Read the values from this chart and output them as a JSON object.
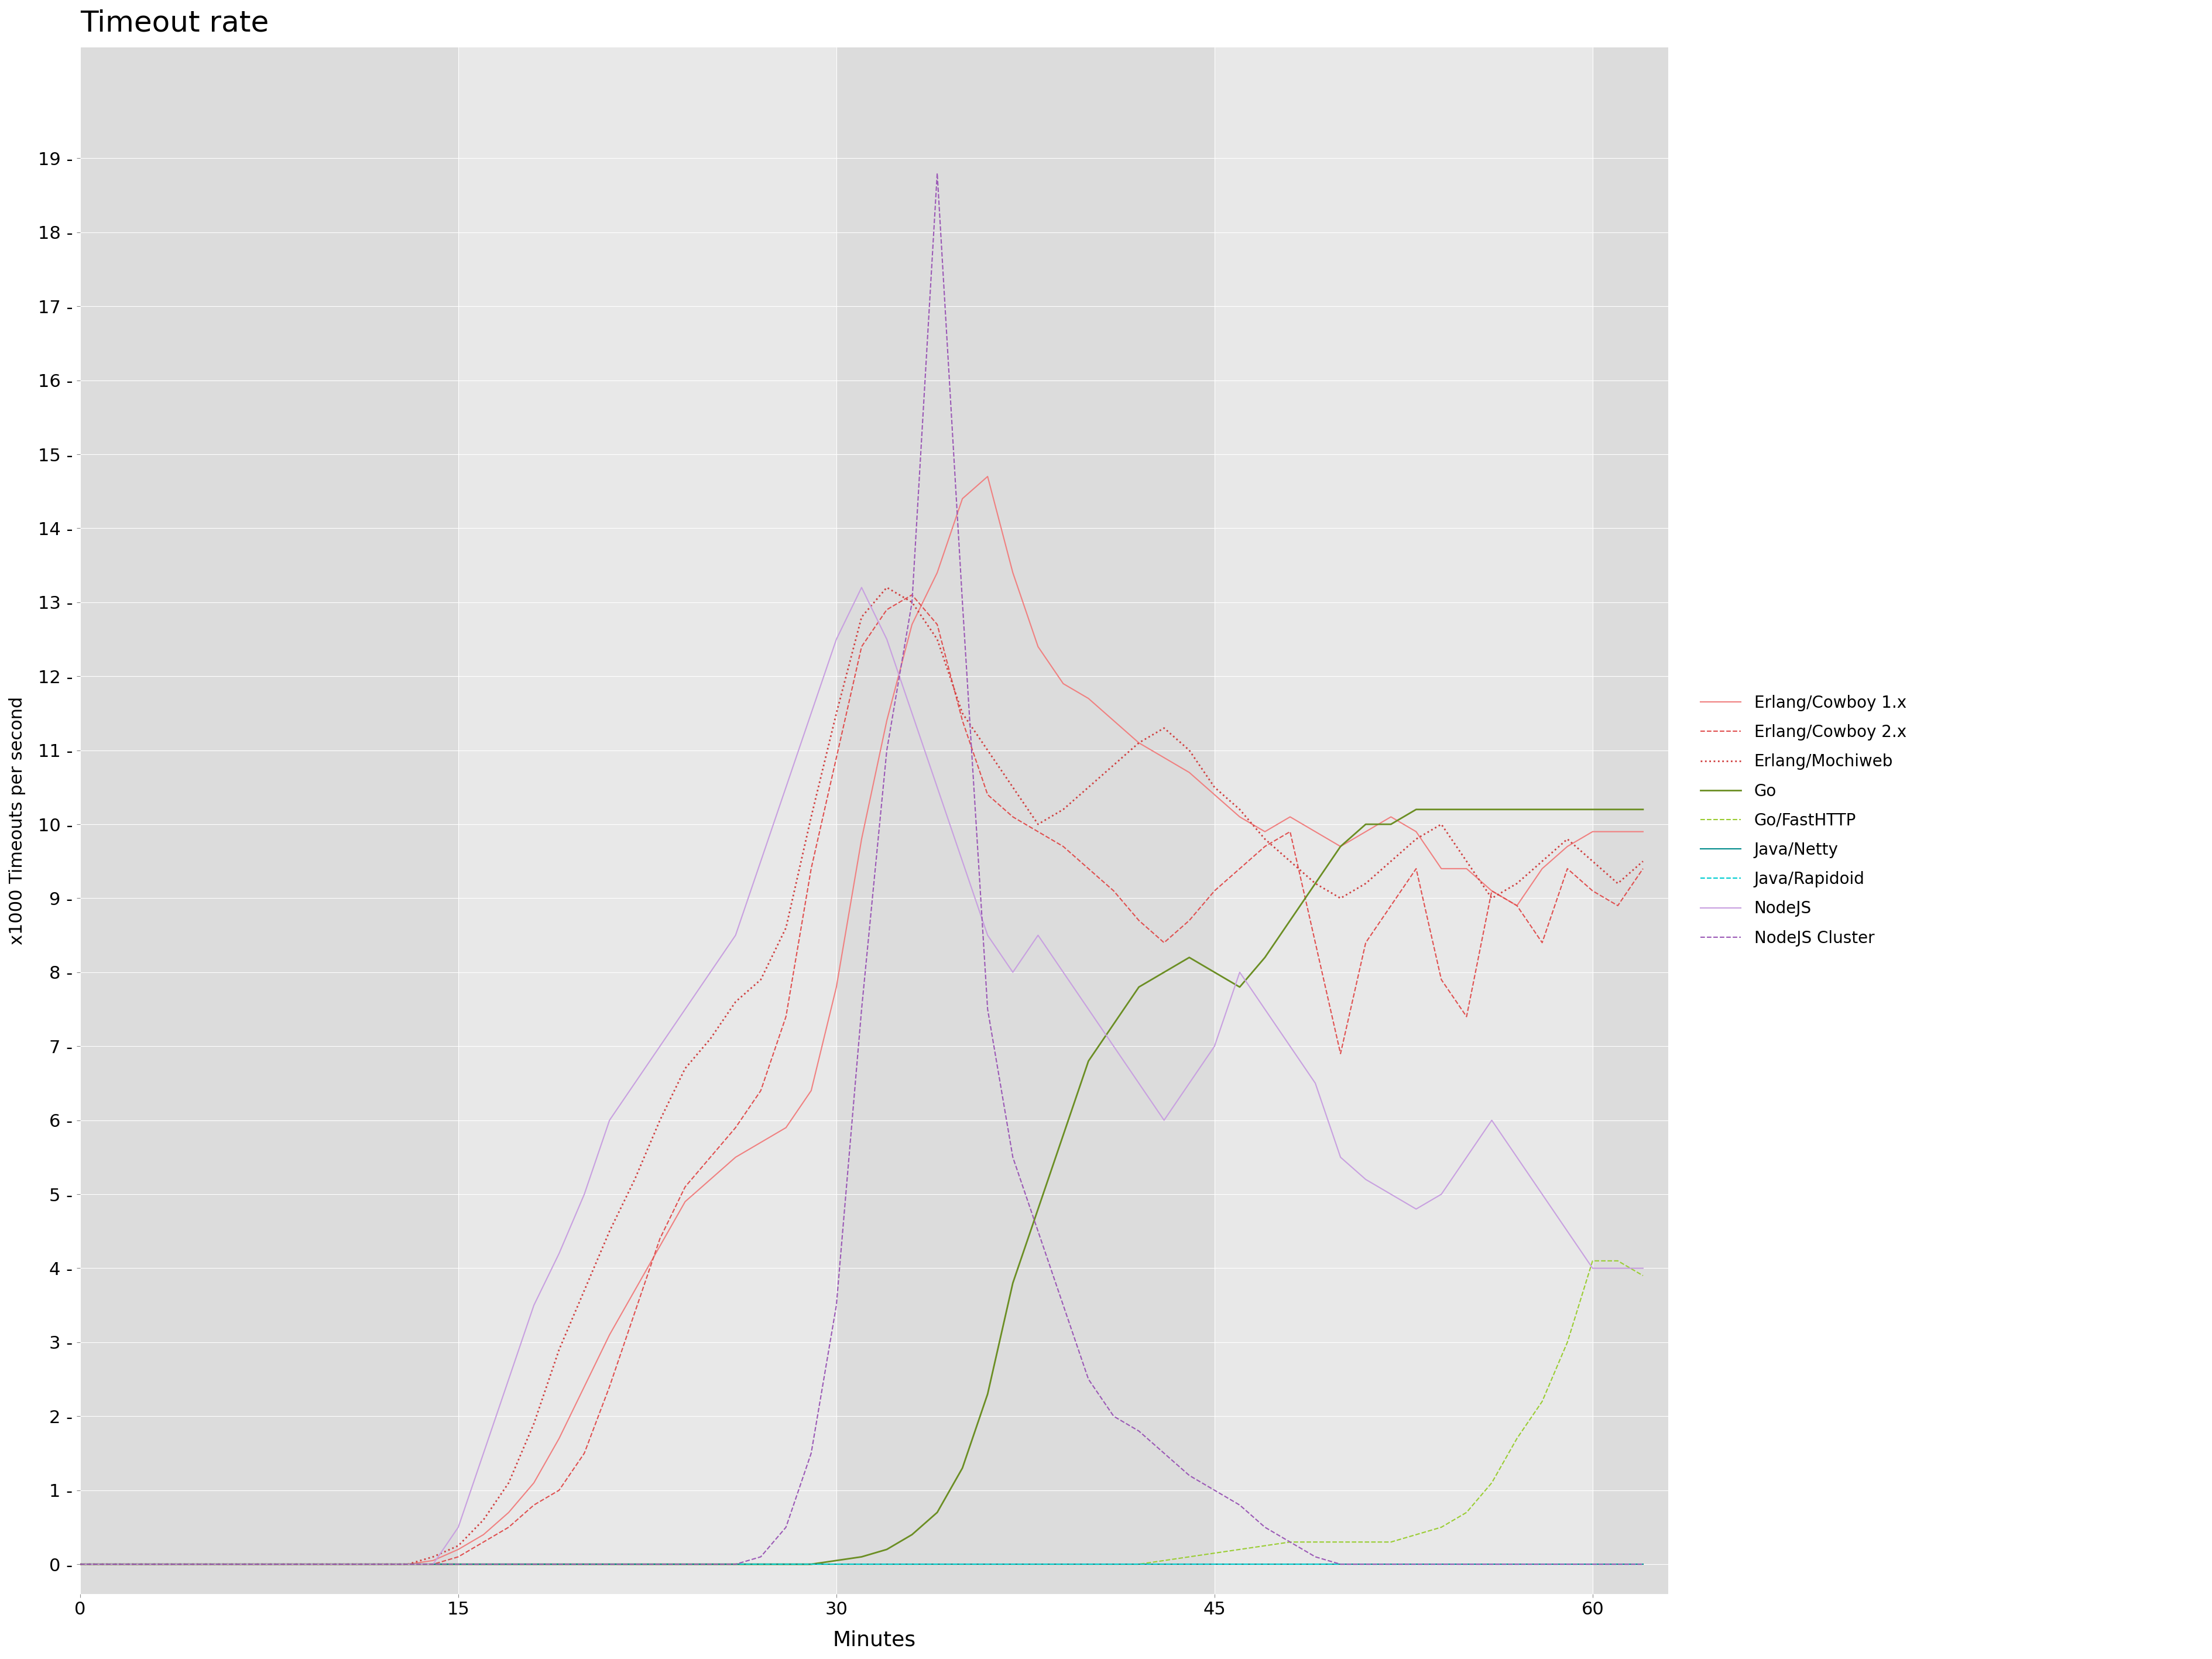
{
  "title": "Timeout rate",
  "xlabel": "Minutes",
  "ylabel": "x1000 Timeouts per second",
  "xlim": [
    0,
    63
  ],
  "ylim": [
    -0.4,
    20.5
  ],
  "yticks": [
    0,
    1,
    2,
    3,
    4,
    5,
    6,
    7,
    8,
    9,
    10,
    11,
    12,
    13,
    14,
    15,
    16,
    17,
    18,
    19
  ],
  "xticks": [
    0,
    15,
    30,
    45,
    60
  ],
  "bg_color": "#e8e8e8",
  "fig_bg": "#ffffff",
  "band_colors": [
    "#dcdcdc",
    "#e8e8e8"
  ],
  "grid_color": "#ffffff",
  "series": [
    {
      "name": "Erlang/Cowboy 1.x",
      "color": "#f08080",
      "linestyle": "-",
      "linewidth": 1.5,
      "x": [
        0,
        1,
        2,
        3,
        4,
        5,
        6,
        7,
        8,
        9,
        10,
        11,
        12,
        13,
        14,
        15,
        16,
        17,
        18,
        19,
        20,
        21,
        22,
        23,
        24,
        25,
        26,
        27,
        28,
        29,
        30,
        31,
        32,
        33,
        34,
        35,
        36,
        37,
        38,
        39,
        40,
        41,
        42,
        43,
        44,
        45,
        46,
        47,
        48,
        49,
        50,
        51,
        52,
        53,
        54,
        55,
        56,
        57,
        58,
        59,
        60,
        61,
        62
      ],
      "y": [
        0,
        0,
        0,
        0,
        0,
        0,
        0,
        0,
        0,
        0,
        0,
        0,
        0,
        0,
        0.05,
        0.2,
        0.4,
        0.7,
        1.1,
        1.7,
        2.4,
        3.1,
        3.7,
        4.3,
        4.9,
        5.2,
        5.5,
        5.7,
        5.9,
        6.4,
        7.8,
        9.8,
        11.4,
        12.7,
        13.4,
        14.4,
        14.7,
        13.4,
        12.4,
        11.9,
        11.7,
        11.4,
        11.1,
        10.9,
        10.7,
        10.4,
        10.1,
        9.9,
        10.1,
        9.9,
        9.7,
        9.9,
        10.1,
        9.9,
        9.4,
        9.4,
        9.1,
        8.9,
        9.4,
        9.7,
        9.9,
        9.9,
        9.9
      ]
    },
    {
      "name": "Erlang/Cowboy 2.x",
      "color": "#e05050",
      "linestyle": "--",
      "linewidth": 1.5,
      "x": [
        0,
        1,
        2,
        3,
        4,
        5,
        6,
        7,
        8,
        9,
        10,
        11,
        12,
        13,
        14,
        15,
        16,
        17,
        18,
        19,
        20,
        21,
        22,
        23,
        24,
        25,
        26,
        27,
        28,
        29,
        30,
        31,
        32,
        33,
        34,
        35,
        36,
        37,
        38,
        39,
        40,
        41,
        42,
        43,
        44,
        45,
        46,
        47,
        48,
        49,
        50,
        51,
        52,
        53,
        54,
        55,
        56,
        57,
        58,
        59,
        60,
        61,
        62
      ],
      "y": [
        0,
        0,
        0,
        0,
        0,
        0,
        0,
        0,
        0,
        0,
        0,
        0,
        0,
        0,
        0,
        0.1,
        0.3,
        0.5,
        0.8,
        1.0,
        1.5,
        2.4,
        3.4,
        4.4,
        5.1,
        5.5,
        5.9,
        6.4,
        7.4,
        9.4,
        10.9,
        12.4,
        12.9,
        13.1,
        12.7,
        11.4,
        10.4,
        10.1,
        9.9,
        9.7,
        9.4,
        9.1,
        8.7,
        8.4,
        8.7,
        9.1,
        9.4,
        9.7,
        9.9,
        8.4,
        6.9,
        8.4,
        8.9,
        9.4,
        7.9,
        7.4,
        9.1,
        8.9,
        8.4,
        9.4,
        9.1,
        8.9,
        9.4
      ]
    },
    {
      "name": "Erlang/Mochiweb",
      "color": "#d04040",
      "linestyle": ":",
      "linewidth": 2.0,
      "x": [
        0,
        1,
        2,
        3,
        4,
        5,
        6,
        7,
        8,
        9,
        10,
        11,
        12,
        13,
        14,
        15,
        16,
        17,
        18,
        19,
        20,
        21,
        22,
        23,
        24,
        25,
        26,
        27,
        28,
        29,
        30,
        31,
        32,
        33,
        34,
        35,
        36,
        37,
        38,
        39,
        40,
        41,
        42,
        43,
        44,
        45,
        46,
        47,
        48,
        49,
        50,
        51,
        52,
        53,
        54,
        55,
        56,
        57,
        58,
        59,
        60,
        61,
        62
      ],
      "y": [
        0,
        0,
        0,
        0,
        0,
        0,
        0,
        0,
        0,
        0,
        0,
        0,
        0,
        0,
        0.1,
        0.25,
        0.6,
        1.1,
        1.9,
        2.9,
        3.7,
        4.5,
        5.2,
        6.0,
        6.7,
        7.1,
        7.6,
        7.9,
        8.6,
        10.1,
        11.5,
        12.8,
        13.2,
        13.0,
        12.5,
        11.5,
        11.0,
        10.5,
        10.0,
        10.2,
        10.5,
        10.8,
        11.1,
        11.3,
        11.0,
        10.5,
        10.2,
        9.8,
        9.5,
        9.2,
        9.0,
        9.2,
        9.5,
        9.8,
        10.0,
        9.5,
        9.0,
        9.2,
        9.5,
        9.8,
        9.5,
        9.2,
        9.5
      ]
    },
    {
      "name": "Go",
      "color": "#6b8e23",
      "linestyle": "-",
      "linewidth": 2.0,
      "x": [
        0,
        1,
        2,
        3,
        4,
        5,
        6,
        7,
        8,
        9,
        10,
        11,
        12,
        13,
        14,
        15,
        16,
        17,
        18,
        19,
        20,
        21,
        22,
        23,
        24,
        25,
        26,
        27,
        28,
        29,
        30,
        31,
        32,
        33,
        34,
        35,
        36,
        37,
        38,
        39,
        40,
        41,
        42,
        43,
        44,
        45,
        46,
        47,
        48,
        49,
        50,
        51,
        52,
        53,
        54,
        55,
        56,
        57,
        58,
        59,
        60,
        61,
        62
      ],
      "y": [
        0,
        0,
        0,
        0,
        0,
        0,
        0,
        0,
        0,
        0,
        0,
        0,
        0,
        0,
        0,
        0,
        0,
        0,
        0,
        0,
        0,
        0,
        0,
        0,
        0,
        0,
        0,
        0,
        0,
        0,
        0.05,
        0.1,
        0.2,
        0.4,
        0.7,
        1.3,
        2.3,
        3.8,
        4.8,
        5.8,
        6.8,
        7.3,
        7.8,
        8.0,
        8.2,
        8.0,
        7.8,
        8.2,
        8.7,
        9.2,
        9.7,
        10.0,
        10.0,
        10.2,
        10.2,
        10.2,
        10.2,
        10.2,
        10.2,
        10.2,
        10.2,
        10.2,
        10.2
      ]
    },
    {
      "name": "Go/FastHTTP",
      "color": "#9acd32",
      "linestyle": "--",
      "linewidth": 1.5,
      "x": [
        0,
        1,
        2,
        3,
        4,
        5,
        6,
        7,
        8,
        9,
        10,
        11,
        12,
        13,
        14,
        15,
        16,
        17,
        18,
        19,
        20,
        21,
        22,
        23,
        24,
        25,
        26,
        27,
        28,
        29,
        30,
        31,
        32,
        33,
        34,
        35,
        36,
        37,
        38,
        39,
        40,
        41,
        42,
        43,
        44,
        45,
        46,
        47,
        48,
        49,
        50,
        51,
        52,
        53,
        54,
        55,
        56,
        57,
        58,
        59,
        60,
        61,
        62
      ],
      "y": [
        0,
        0,
        0,
        0,
        0,
        0,
        0,
        0,
        0,
        0,
        0,
        0,
        0,
        0,
        0,
        0,
        0,
        0,
        0,
        0,
        0,
        0,
        0,
        0,
        0,
        0,
        0,
        0,
        0,
        0,
        0,
        0,
        0,
        0,
        0,
        0,
        0,
        0,
        0,
        0,
        0,
        0,
        0,
        0.05,
        0.1,
        0.15,
        0.2,
        0.25,
        0.3,
        0.3,
        0.3,
        0.3,
        0.3,
        0.4,
        0.5,
        0.7,
        1.1,
        1.7,
        2.2,
        3.0,
        4.1,
        4.1,
        3.9
      ]
    },
    {
      "name": "Java/Netty",
      "color": "#008b8b",
      "linestyle": "-",
      "linewidth": 1.5,
      "x": [
        0,
        62
      ],
      "y": [
        0,
        0
      ]
    },
    {
      "name": "Java/Rapidoid",
      "color": "#00ced1",
      "linestyle": "--",
      "linewidth": 1.5,
      "x": [
        0,
        62
      ],
      "y": [
        0,
        0
      ]
    },
    {
      "name": "NodeJS",
      "color": "#c8a0e0",
      "linestyle": "-",
      "linewidth": 1.5,
      "x": [
        0,
        1,
        2,
        3,
        4,
        5,
        6,
        7,
        8,
        9,
        10,
        11,
        12,
        13,
        14,
        15,
        16,
        17,
        18,
        19,
        20,
        21,
        22,
        23,
        24,
        25,
        26,
        27,
        28,
        29,
        30,
        31,
        32,
        33,
        34,
        35,
        36,
        37,
        38,
        39,
        40,
        41,
        42,
        43,
        44,
        45,
        46,
        47,
        48,
        49,
        50,
        51,
        52,
        53,
        54,
        55,
        56,
        57,
        58,
        59,
        60,
        61,
        62
      ],
      "y": [
        0,
        0,
        0,
        0,
        0,
        0,
        0,
        0,
        0,
        0,
        0,
        0,
        0,
        0,
        0,
        0.5,
        1.5,
        2.5,
        3.5,
        4.2,
        5.0,
        6.0,
        6.5,
        7.0,
        7.5,
        8.0,
        8.5,
        9.5,
        10.5,
        11.5,
        12.5,
        13.2,
        12.5,
        11.5,
        10.5,
        9.5,
        8.5,
        8.0,
        8.5,
        8.0,
        7.5,
        7.0,
        6.5,
        6.0,
        6.5,
        7.0,
        8.0,
        7.5,
        7.0,
        6.5,
        5.5,
        5.2,
        5.0,
        4.8,
        5.0,
        5.5,
        6.0,
        5.5,
        5.0,
        4.5,
        4.0,
        4.0,
        4.0
      ]
    },
    {
      "name": "NodeJS Cluster",
      "color": "#9b59b6",
      "linestyle": "--",
      "linewidth": 1.5,
      "x": [
        0,
        1,
        2,
        3,
        4,
        5,
        6,
        7,
        8,
        9,
        10,
        11,
        12,
        13,
        14,
        15,
        16,
        17,
        18,
        19,
        20,
        21,
        22,
        23,
        24,
        25,
        26,
        27,
        28,
        29,
        30,
        31,
        32,
        33,
        34,
        35,
        36,
        37,
        38,
        39,
        40,
        41,
        42,
        43,
        44,
        45,
        46,
        47,
        48,
        49,
        50,
        51,
        52,
        53,
        54,
        55,
        56,
        57,
        58,
        59,
        60,
        61,
        62
      ],
      "y": [
        0,
        0,
        0,
        0,
        0,
        0,
        0,
        0,
        0,
        0,
        0,
        0,
        0,
        0,
        0,
        0,
        0,
        0,
        0,
        0,
        0,
        0,
        0,
        0,
        0,
        0,
        0,
        0.1,
        0.5,
        1.5,
        3.5,
        7.5,
        11.0,
        13.0,
        18.8,
        13.0,
        7.5,
        5.5,
        4.5,
        3.5,
        2.5,
        2.0,
        1.8,
        1.5,
        1.2,
        1.0,
        0.8,
        0.5,
        0.3,
        0.1,
        0,
        0,
        0,
        0,
        0,
        0,
        0,
        0,
        0,
        0,
        0,
        0,
        0
      ]
    }
  ]
}
